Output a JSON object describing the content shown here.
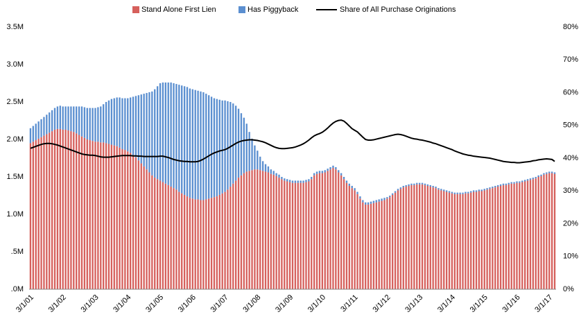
{
  "chart_data": {
    "type": "bar",
    "stacked": true,
    "legend": "top",
    "categories": [
      "3/1/01",
      null,
      null,
      null,
      null,
      null,
      null,
      null,
      null,
      null,
      null,
      null,
      "3/1/02",
      null,
      null,
      null,
      null,
      null,
      null,
      null,
      null,
      null,
      null,
      null,
      "3/1/03",
      null,
      null,
      null,
      null,
      null,
      null,
      null,
      null,
      null,
      null,
      null,
      "3/1/04",
      null,
      null,
      null,
      null,
      null,
      null,
      null,
      null,
      null,
      null,
      null,
      "3/1/05",
      null,
      null,
      null,
      null,
      null,
      null,
      null,
      null,
      null,
      null,
      null,
      "3/1/06",
      null,
      null,
      null,
      null,
      null,
      null,
      null,
      null,
      null,
      null,
      null,
      "3/1/07",
      null,
      null,
      null,
      null,
      null,
      null,
      null,
      null,
      null,
      null,
      null,
      "3/1/08",
      null,
      null,
      null,
      null,
      null,
      null,
      null,
      null,
      null,
      null,
      null,
      "3/1/09",
      null,
      null,
      null,
      null,
      null,
      null,
      null,
      null,
      null,
      null,
      null,
      "3/1/10",
      null,
      null,
      null,
      null,
      null,
      null,
      null,
      null,
      null,
      null,
      null,
      "3/1/11",
      null,
      null,
      null,
      null,
      null,
      null,
      null,
      null,
      null,
      null,
      null,
      "3/1/12",
      null,
      null,
      null,
      null,
      null,
      null,
      null,
      null,
      null,
      null,
      null,
      "3/1/13",
      null,
      null,
      null,
      null,
      null,
      null,
      null,
      null,
      null,
      null,
      null,
      "3/1/14",
      null,
      null,
      null,
      null,
      null,
      null,
      null,
      null,
      null,
      null,
      null,
      "3/1/15",
      null,
      null,
      null,
      null,
      null,
      null,
      null,
      null,
      null,
      null,
      null,
      "3/1/16",
      null,
      null,
      null,
      null,
      null,
      null,
      null,
      null,
      null,
      null,
      null,
      "3/1/17",
      null,
      null
    ],
    "series": [
      {
        "name": "Stand Alone First Lien",
        "color": "#d6605c",
        "values": [
          1.95,
          1.97,
          1.99,
          2.01,
          2.03,
          2.05,
          2.07,
          2.09,
          2.11,
          2.13,
          2.14,
          2.14,
          2.13,
          2.13,
          2.12,
          2.11,
          2.1,
          2.08,
          2.06,
          2.04,
          2.02,
          2.0,
          1.99,
          1.98,
          1.97,
          1.97,
          1.96,
          1.96,
          1.95,
          1.94,
          1.93,
          1.92,
          1.91,
          1.89,
          1.87,
          1.86,
          1.84,
          1.82,
          1.79,
          1.76,
          1.72,
          1.68,
          1.64,
          1.6,
          1.56,
          1.52,
          1.49,
          1.47,
          1.45,
          1.43,
          1.41,
          1.39,
          1.37,
          1.35,
          1.33,
          1.3,
          1.28,
          1.26,
          1.24,
          1.22,
          1.21,
          1.2,
          1.2,
          1.19,
          1.19,
          1.2,
          1.21,
          1.22,
          1.23,
          1.24,
          1.26,
          1.28,
          1.3,
          1.33,
          1.37,
          1.41,
          1.45,
          1.49,
          1.52,
          1.55,
          1.57,
          1.58,
          1.59,
          1.6,
          1.6,
          1.59,
          1.58,
          1.57,
          1.56,
          1.54,
          1.53,
          1.51,
          1.49,
          1.47,
          1.45,
          1.44,
          1.43,
          1.42,
          1.42,
          1.42,
          1.42,
          1.42,
          1.43,
          1.44,
          1.47,
          1.52,
          1.54,
          1.55,
          1.55,
          1.56,
          1.58,
          1.6,
          1.62,
          1.6,
          1.56,
          1.52,
          1.47,
          1.42,
          1.38,
          1.35,
          1.32,
          1.27,
          1.21,
          1.16,
          1.13,
          1.13,
          1.14,
          1.15,
          1.16,
          1.17,
          1.18,
          1.19,
          1.21,
          1.23,
          1.26,
          1.29,
          1.32,
          1.34,
          1.36,
          1.37,
          1.38,
          1.39,
          1.39,
          1.4,
          1.4,
          1.4,
          1.39,
          1.38,
          1.37,
          1.36,
          1.35,
          1.33,
          1.32,
          1.31,
          1.3,
          1.29,
          1.28,
          1.27,
          1.27,
          1.27,
          1.27,
          1.28,
          1.28,
          1.29,
          1.3,
          1.3,
          1.31,
          1.31,
          1.32,
          1.33,
          1.34,
          1.35,
          1.36,
          1.37,
          1.38,
          1.39,
          1.39,
          1.4,
          1.41,
          1.41,
          1.42,
          1.42,
          1.43,
          1.44,
          1.45,
          1.46,
          1.47,
          1.48,
          1.5,
          1.51,
          1.53,
          1.54,
          1.55,
          1.55,
          1.54
        ]
      },
      {
        "name": "Has Piggyback",
        "color": "#5b8fd0",
        "values": [
          0.2,
          0.21,
          0.22,
          0.23,
          0.24,
          0.25,
          0.26,
          0.27,
          0.28,
          0.29,
          0.3,
          0.31,
          0.31,
          0.31,
          0.32,
          0.33,
          0.34,
          0.36,
          0.38,
          0.4,
          0.41,
          0.42,
          0.43,
          0.44,
          0.45,
          0.46,
          0.48,
          0.51,
          0.55,
          0.58,
          0.61,
          0.63,
          0.65,
          0.67,
          0.68,
          0.69,
          0.71,
          0.74,
          0.78,
          0.82,
          0.87,
          0.92,
          0.97,
          1.02,
          1.07,
          1.12,
          1.18,
          1.24,
          1.3,
          1.33,
          1.35,
          1.37,
          1.39,
          1.4,
          1.41,
          1.43,
          1.44,
          1.45,
          1.46,
          1.46,
          1.46,
          1.46,
          1.45,
          1.45,
          1.44,
          1.41,
          1.38,
          1.35,
          1.32,
          1.3,
          1.27,
          1.24,
          1.22,
          1.18,
          1.13,
          1.07,
          1.0,
          0.92,
          0.83,
          0.74,
          0.64,
          0.52,
          0.42,
          0.32,
          0.25,
          0.18,
          0.13,
          0.1,
          0.08,
          0.06,
          0.05,
          0.04,
          0.04,
          0.03,
          0.03,
          0.03,
          0.03,
          0.03,
          0.03,
          0.03,
          0.03,
          0.03,
          0.03,
          0.03,
          0.03,
          0.03,
          0.03,
          0.03,
          0.03,
          0.03,
          0.03,
          0.03,
          0.03,
          0.03,
          0.03,
          0.03,
          0.03,
          0.03,
          0.03,
          0.03,
          0.03,
          0.03,
          0.03,
          0.03,
          0.03,
          0.03,
          0.03,
          0.03,
          0.03,
          0.03,
          0.03,
          0.03,
          0.02,
          0.02,
          0.02,
          0.02,
          0.02,
          0.02,
          0.02,
          0.02,
          0.02,
          0.02,
          0.02,
          0.02,
          0.02,
          0.02,
          0.02,
          0.02,
          0.02,
          0.02,
          0.02,
          0.02,
          0.02,
          0.02,
          0.02,
          0.02,
          0.02,
          0.02,
          0.02,
          0.02,
          0.02,
          0.02,
          0.02,
          0.02,
          0.02,
          0.02,
          0.02,
          0.02,
          0.02,
          0.02,
          0.02,
          0.02,
          0.02,
          0.02,
          0.02,
          0.02,
          0.02,
          0.02,
          0.02,
          0.02,
          0.02,
          0.02,
          0.02,
          0.02,
          0.02,
          0.02,
          0.02,
          0.02,
          0.02,
          0.02,
          0.02,
          0.02,
          0.02,
          0.02,
          0.02
        ]
      },
      {
        "name": "Share of All Purchase Originations",
        "type": "line",
        "axis": "y2",
        "color": "#000000",
        "values": [
          43.0,
          43.3,
          43.6,
          43.9,
          44.2,
          44.4,
          44.5,
          44.5,
          44.4,
          44.2,
          44.0,
          43.7,
          43.4,
          43.1,
          42.8,
          42.5,
          42.2,
          41.9,
          41.6,
          41.3,
          41.1,
          41.0,
          40.9,
          40.9,
          40.8,
          40.6,
          40.4,
          40.3,
          40.3,
          40.3,
          40.4,
          40.5,
          40.6,
          40.7,
          40.8,
          40.8,
          40.8,
          40.8,
          40.7,
          40.7,
          40.6,
          40.6,
          40.5,
          40.5,
          40.5,
          40.5,
          40.5,
          40.5,
          40.6,
          40.6,
          40.4,
          40.2,
          39.9,
          39.6,
          39.4,
          39.2,
          39.1,
          39.0,
          39.0,
          38.9,
          38.9,
          38.9,
          39.0,
          39.3,
          39.7,
          40.2,
          40.7,
          41.2,
          41.6,
          41.9,
          42.2,
          42.4,
          42.6,
          43.0,
          43.5,
          44.0,
          44.5,
          44.9,
          45.2,
          45.4,
          45.5,
          45.6,
          45.6,
          45.5,
          45.4,
          45.2,
          45.0,
          44.7,
          44.3,
          43.9,
          43.5,
          43.2,
          43.0,
          42.9,
          42.9,
          43.0,
          43.1,
          43.2,
          43.4,
          43.7,
          44.0,
          44.4,
          44.9,
          45.5,
          46.2,
          46.8,
          47.2,
          47.5,
          47.9,
          48.5,
          49.2,
          50.0,
          50.7,
          51.2,
          51.5,
          51.6,
          51.3,
          50.6,
          49.8,
          49.0,
          48.5,
          48.0,
          47.2,
          46.4,
          45.7,
          45.5,
          45.5,
          45.6,
          45.8,
          46.0,
          46.2,
          46.4,
          46.6,
          46.8,
          47.0,
          47.2,
          47.3,
          47.2,
          47.0,
          46.7,
          46.4,
          46.1,
          45.9,
          45.8,
          45.6,
          45.5,
          45.3,
          45.1,
          44.9,
          44.6,
          44.4,
          44.1,
          43.8,
          43.5,
          43.2,
          42.9,
          42.6,
          42.2,
          41.9,
          41.6,
          41.3,
          41.1,
          40.9,
          40.8,
          40.6,
          40.5,
          40.4,
          40.3,
          40.2,
          40.1,
          40.0,
          39.8,
          39.6,
          39.4,
          39.2,
          39.0,
          38.9,
          38.8,
          38.7,
          38.7,
          38.6,
          38.6,
          38.7,
          38.8,
          38.9,
          39.0,
          39.2,
          39.3,
          39.5,
          39.6,
          39.7,
          39.8,
          39.7,
          39.6,
          39.0
        ]
      }
    ],
    "ylim": [
      0,
      3.5
    ],
    "yticks": [
      {
        "value": 0,
        "label": ".0M"
      },
      {
        "value": 0.5,
        "label": ".5M"
      },
      {
        "value": 1,
        "label": "1.0M"
      },
      {
        "value": 1.5,
        "label": "1.5M"
      },
      {
        "value": 2,
        "label": "2.0M"
      },
      {
        "value": 2.5,
        "label": "2.5M"
      },
      {
        "value": 3,
        "label": "3.0M"
      },
      {
        "value": 3.5,
        "label": "3.5M"
      }
    ],
    "y2lim": [
      0,
      80
    ],
    "y2ticks": [
      {
        "value": 0,
        "label": "0%"
      },
      {
        "value": 10,
        "label": "10%"
      },
      {
        "value": 20,
        "label": "20%"
      },
      {
        "value": 30,
        "label": "30%"
      },
      {
        "value": 40,
        "label": "40%"
      },
      {
        "value": 50,
        "label": "50%"
      },
      {
        "value": 60,
        "label": "60%"
      },
      {
        "value": 70,
        "label": "70%"
      },
      {
        "value": 80,
        "label": "80%"
      }
    ]
  }
}
